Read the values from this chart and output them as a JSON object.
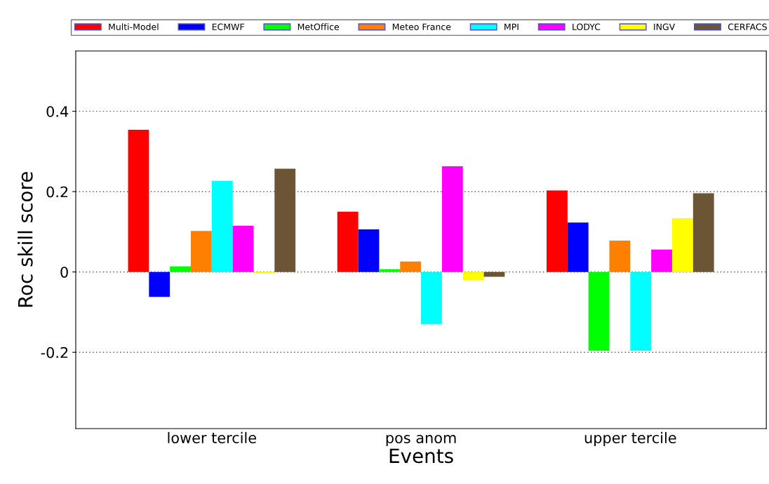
{
  "chart_data": {
    "type": "bar",
    "xlabel": "Events",
    "ylabel": "Roc skill score",
    "categories": [
      "lower tercile",
      "pos anom",
      "upper tercile"
    ],
    "series": [
      {
        "name": "Multi-Model",
        "color": "#ff0000",
        "values": [
          0.354,
          0.15,
          0.203
        ]
      },
      {
        "name": "ECMWF",
        "color": "#0000ff",
        "values": [
          -0.062,
          0.106,
          0.123
        ]
      },
      {
        "name": "MetOffice",
        "color": "#00ff00",
        "values": [
          0.014,
          0.007,
          -0.196
        ]
      },
      {
        "name": "Meteo France",
        "color": "#ff8000",
        "values": [
          0.102,
          0.026,
          0.078
        ]
      },
      {
        "name": "MPI",
        "color": "#00ffff",
        "values": [
          0.227,
          -0.13,
          -0.196
        ]
      },
      {
        "name": "LODYC",
        "color": "#ff00ff",
        "values": [
          0.115,
          0.263,
          0.056
        ]
      },
      {
        "name": "INGV",
        "color": "#ffff00",
        "values": [
          -0.003,
          -0.021,
          0.134
        ]
      },
      {
        "name": "CERFACS",
        "color": "#6b5535",
        "values": [
          0.257,
          -0.012,
          0.196
        ]
      }
    ],
    "ylim": [
      -0.39,
      0.55
    ],
    "yticks": [
      {
        "value": -0.2,
        "label": "-0.2"
      },
      0,
      0.2,
      0.4
    ],
    "grid": "y",
    "legend": "top"
  }
}
